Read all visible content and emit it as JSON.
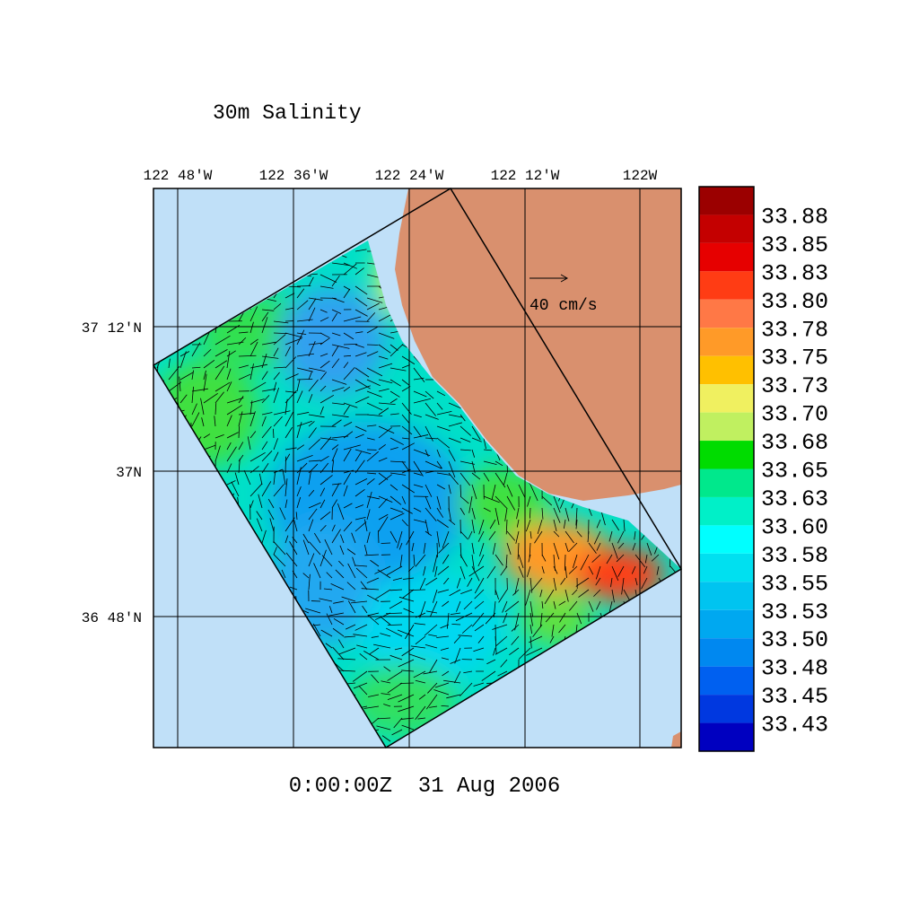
{
  "title": "30m Salinity",
  "longitude_labels": [
    "122 48'W",
    "122 36'W",
    "122 24'W",
    "122 12'W",
    "122W"
  ],
  "latitude_labels": [
    "37 12'N",
    "37N",
    "36 48'N"
  ],
  "scale_label": "40 cm/s",
  "time_label": "0:00:00Z  31 Aug 2006",
  "colorbar": {
    "labels": [
      "33.88",
      "33.85",
      "33.83",
      "33.80",
      "33.78",
      "33.75",
      "33.73",
      "33.70",
      "33.68",
      "33.65",
      "33.63",
      "33.60",
      "33.58",
      "33.55",
      "33.53",
      "33.50",
      "33.48",
      "33.45",
      "33.43"
    ],
    "colors": [
      "#9b0000",
      "#c40000",
      "#e60000",
      "#ff3c14",
      "#ff7846",
      "#ff9a28",
      "#ffc000",
      "#f0f060",
      "#c0f060",
      "#00dc00",
      "#00e88c",
      "#00f0c8",
      "#00ffff",
      "#00e0f0",
      "#00c4f0",
      "#00a8f0",
      "#0088f0",
      "#0060f0",
      "#0038e0",
      "#0000c0"
    ]
  }
}
